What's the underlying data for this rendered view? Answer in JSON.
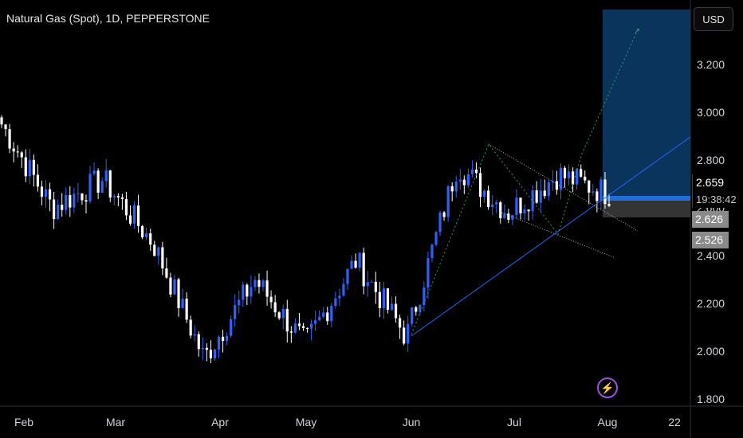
{
  "header": {
    "title": "Natural Gas (Spot), 1D, PEPPERSTONE"
  },
  "currency_button": {
    "label": "USD"
  },
  "price_tags": {
    "last": "2.659",
    "countdown": "19:38:42",
    "level_a": "2.626",
    "level_b": "2.526"
  },
  "indicator": {
    "icon": "lightning-icon"
  },
  "colors": {
    "up": "#2962ff",
    "down": "#ffffff",
    "position_zone": "#0b3a66",
    "stop_zone": "#3a3a3a"
  },
  "chart_data": {
    "type": "candlestick",
    "title": "Natural Gas (Spot), 1D, PEPPERSTONE",
    "y_axis": {
      "ticks": [
        "3.200",
        "3.000",
        "2.800",
        "2.600",
        "2.400",
        "2.200",
        "2.000",
        "1.800"
      ],
      "ylim": [
        1.77,
        3.47
      ]
    },
    "x_axis": {
      "ticks": [
        "Feb",
        "Mar",
        "Apr",
        "May",
        "Jun",
        "Jul",
        "Aug",
        "22"
      ]
    },
    "grid": false,
    "approx_close_path": [
      {
        "date": "Jan",
        "close": 2.95
      },
      {
        "date": "Feb",
        "close": 2.6
      },
      {
        "date": "Mar",
        "close": 2.72
      },
      {
        "date": "Mar",
        "close": 2.45
      },
      {
        "date": "Apr",
        "close": 1.97
      },
      {
        "date": "May",
        "close": 2.3
      },
      {
        "date": "May",
        "close": 2.03
      },
      {
        "date": "Jun",
        "close": 2.38
      },
      {
        "date": "Jun",
        "close": 2.06
      },
      {
        "date": "Jun",
        "close": 2.78
      },
      {
        "date": "Jul",
        "close": 2.58
      },
      {
        "date": "Jul",
        "close": 2.74
      },
      {
        "date": "Aug",
        "close": 2.66
      }
    ],
    "annotations": {
      "long_position": {
        "entry": 2.64,
        "target": 3.43,
        "stop": 2.56
      },
      "falling_wedge": true,
      "ascending_trendline": true
    }
  }
}
